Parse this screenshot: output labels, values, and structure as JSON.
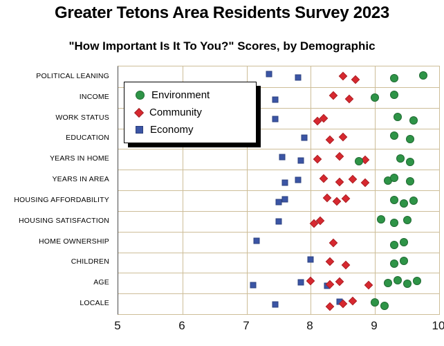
{
  "title": "Greater Tetons Area Residents Survey 2023",
  "subtitle": "\"How Important Is It To You?\" Scores, by Demographic",
  "chart_data": {
    "type": "scatter",
    "title": "Greater Tetons Area Residents Survey 2023",
    "subtitle": "\"How Important Is It To You?\" Scores, by Demographic",
    "orientation": "horizontal-categories",
    "categories": [
      "POLITICAL LEANING",
      "INCOME",
      "WORK STATUS",
      "EDUCATION",
      "YEARS IN HOME",
      "YEARS IN AREA",
      "HOUSING AFFORDABILITY",
      "HOUSING SATISFACTION",
      "HOME OWNERSHIP",
      "CHILDREN",
      "AGE",
      "LOCALE"
    ],
    "xlim": [
      5,
      10
    ],
    "x_ticks": [
      5,
      6,
      7,
      8,
      9,
      10
    ],
    "grid": true,
    "gridline_color": "#cdbd98",
    "legend": {
      "position": "top-left-inside",
      "entries": [
        {
          "label": "Environment",
          "marker": "circle",
          "color": "#2e9447"
        },
        {
          "label": "Community",
          "marker": "diamond",
          "color": "#d7282f"
        },
        {
          "label": "Economy",
          "marker": "square",
          "color": "#3b55a5"
        }
      ]
    },
    "series": [
      {
        "name": "Economy",
        "marker": "square",
        "color": "#3b55a5",
        "values": [
          [
            7.35,
            7.8
          ],
          [
            7.45
          ],
          [
            7.45
          ],
          [
            7.9
          ],
          [
            7.55,
            7.85
          ],
          [
            7.6,
            7.8
          ],
          [
            7.5,
            7.6
          ],
          [
            7.5
          ],
          [
            7.15
          ],
          [
            8.0
          ],
          [
            7.1,
            7.85,
            8.25
          ],
          [
            7.45,
            8.45
          ]
        ]
      },
      {
        "name": "Community",
        "marker": "diamond",
        "color": "#d7282f",
        "values": [
          [
            8.5,
            8.7
          ],
          [
            8.35,
            8.6
          ],
          [
            8.1,
            8.2
          ],
          [
            8.3,
            8.5
          ],
          [
            8.1,
            8.45,
            8.85
          ],
          [
            8.2,
            8.45,
            8.65,
            8.85
          ],
          [
            8.25,
            8.4,
            8.55
          ],
          [
            8.05,
            8.15
          ],
          [
            8.35
          ],
          [
            8.3,
            8.55
          ],
          [
            8.0,
            8.3,
            8.45,
            8.9
          ],
          [
            8.3,
            8.5,
            8.65
          ]
        ]
      },
      {
        "name": "Environment",
        "marker": "circle",
        "color": "#2e9447",
        "values": [
          [
            9.3,
            9.75
          ],
          [
            9.0,
            9.3
          ],
          [
            9.35,
            9.6
          ],
          [
            9.3,
            9.55
          ],
          [
            8.75,
            9.4,
            9.55
          ],
          [
            9.2,
            9.3,
            9.55
          ],
          [
            9.3,
            9.45,
            9.6
          ],
          [
            9.1,
            9.3,
            9.5
          ],
          [
            9.3,
            9.45
          ],
          [
            9.3,
            9.45
          ],
          [
            9.2,
            9.35,
            9.5,
            9.65
          ],
          [
            9.0,
            9.15
          ]
        ]
      }
    ]
  }
}
